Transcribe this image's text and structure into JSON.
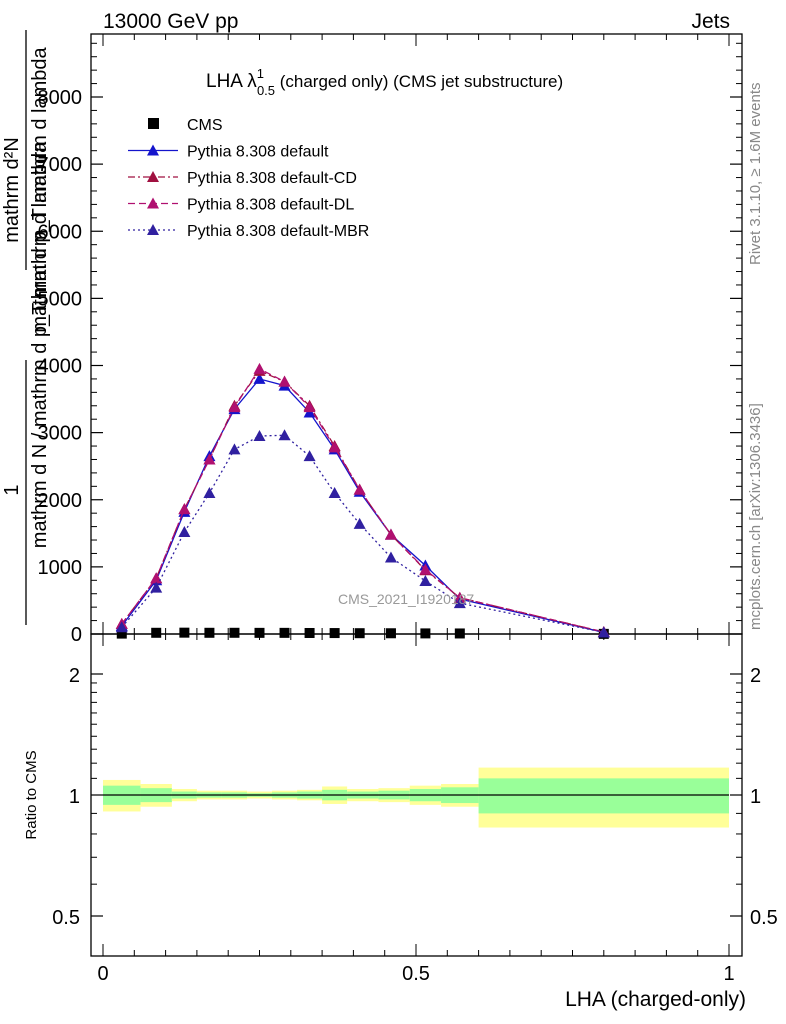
{
  "header": {
    "left": "13000 GeV pp",
    "right": "Jets"
  },
  "title": {
    "main": "LHA λ",
    "sup": "1",
    "sub": "0.5",
    "rest": " (charged only) (CMS jet substructure)"
  },
  "side_labels": {
    "rivet": "Rivet 3.1.10, ≥ 1.6M events",
    "mcplots": "mcplots.cern.ch [arXiv:1306.3436]"
  },
  "watermark": "CMS_2021_I1920187",
  "ylabel_main": {
    "numerator_one": "1",
    "denominator_one": "mathrm d N",
    "numerator_two": "mathrm d²N",
    "denominator_two": "mathrm d p_T mathrm d lambda",
    "combined_denominator": "/ mathrm d p_T mathrm d lambda"
  },
  "ylabel_main_text": "mathrm d N / mathrm d p_T mathrm d lambda",
  "ylabel_ratio": "Ratio to CMS",
  "xlabel": "LHA (charged-only)",
  "colors": {
    "cms": "#000000",
    "default": "#1414cc",
    "cd": "#a01040",
    "dl": "#b01070",
    "mbr": "#3020a0",
    "band_inner": "#99ff99",
    "band_outer": "#ffff99"
  },
  "chart_data": {
    "type": "line",
    "xlim": [
      0,
      1
    ],
    "ylim": [
      0,
      8000
    ],
    "y_ticks": [
      0,
      1000,
      2000,
      3000,
      4000,
      5000,
      6000,
      7000,
      8000
    ],
    "y_tick_labels": [
      "0",
      "1000",
      "2000",
      "3000",
      "4000",
      "5000",
      "6000",
      "7000",
      "8000"
    ],
    "x_ticks": [
      0,
      0.5,
      1
    ],
    "x_tick_labels": [
      "0",
      "0.5",
      "1"
    ],
    "ratio_ylim": [
      0.4,
      2.3
    ],
    "ratio_ticks": [
      0.5,
      1,
      2
    ],
    "ratio_tick_labels": [
      "0.5",
      "1",
      "2"
    ],
    "x": [
      0.03,
      0.085,
      0.13,
      0.17,
      0.21,
      0.25,
      0.29,
      0.33,
      0.37,
      0.41,
      0.46,
      0.515,
      0.57,
      0.8
    ],
    "series": [
      {
        "name": "CMS",
        "marker": "square",
        "values": [
          6,
          18,
          20,
          18,
          18,
          17,
          17,
          15,
          14,
          12,
          11,
          9,
          8,
          2
        ]
      },
      {
        "name": "Pythia 8.308 default",
        "style": "solid",
        "values": [
          120,
          800,
          1820,
          2650,
          3350,
          3800,
          3700,
          3300,
          2750,
          2120,
          1480,
          1020,
          520,
          25
        ]
      },
      {
        "name": "Pythia 8.308 default-CD",
        "style": "dashdot",
        "values": [
          150,
          830,
          1860,
          2600,
          3400,
          3920,
          3760,
          3400,
          2800,
          2150,
          1480,
          950,
          540,
          30
        ]
      },
      {
        "name": "Pythia 8.308 default-DL",
        "style": "dashed",
        "values": [
          150,
          830,
          1860,
          2600,
          3380,
          3950,
          3760,
          3380,
          2780,
          2150,
          1480,
          960,
          540,
          30
        ]
      },
      {
        "name": "Pythia 8.308 default-MBR",
        "style": "dotted",
        "values": [
          100,
          690,
          1520,
          2100,
          2750,
          2950,
          2960,
          2650,
          2100,
          1640,
          1140,
          790,
          460,
          25
        ]
      }
    ],
    "ratio_bands": [
      {
        "x0": 0.0,
        "x1": 0.06,
        "inner": [
          0.945,
          1.055
        ],
        "outer": [
          0.91,
          1.09
        ]
      },
      {
        "x0": 0.06,
        "x1": 0.11,
        "inner": [
          0.96,
          1.04
        ],
        "outer": [
          0.935,
          1.065
        ]
      },
      {
        "x0": 0.11,
        "x1": 0.15,
        "inner": [
          0.98,
          1.02
        ],
        "outer": [
          0.965,
          1.035
        ]
      },
      {
        "x0": 0.15,
        "x1": 0.19,
        "inner": [
          0.985,
          1.015
        ],
        "outer": [
          0.975,
          1.025
        ]
      },
      {
        "x0": 0.19,
        "x1": 0.23,
        "inner": [
          0.985,
          1.015
        ],
        "outer": [
          0.975,
          1.025
        ]
      },
      {
        "x0": 0.23,
        "x1": 0.27,
        "inner": [
          0.99,
          1.01
        ],
        "outer": [
          0.98,
          1.02
        ]
      },
      {
        "x0": 0.27,
        "x1": 0.31,
        "inner": [
          0.985,
          1.015
        ],
        "outer": [
          0.975,
          1.025
        ]
      },
      {
        "x0": 0.31,
        "x1": 0.35,
        "inner": [
          0.98,
          1.02
        ],
        "outer": [
          0.97,
          1.03
        ]
      },
      {
        "x0": 0.35,
        "x1": 0.39,
        "inner": [
          0.97,
          1.03
        ],
        "outer": [
          0.95,
          1.05
        ]
      },
      {
        "x0": 0.39,
        "x1": 0.44,
        "inner": [
          0.98,
          1.02
        ],
        "outer": [
          0.965,
          1.035
        ]
      },
      {
        "x0": 0.44,
        "x1": 0.49,
        "inner": [
          0.975,
          1.025
        ],
        "outer": [
          0.96,
          1.04
        ]
      },
      {
        "x0": 0.49,
        "x1": 0.54,
        "inner": [
          0.965,
          1.035
        ],
        "outer": [
          0.945,
          1.055
        ]
      },
      {
        "x0": 0.54,
        "x1": 0.6,
        "inner": [
          0.955,
          1.045
        ],
        "outer": [
          0.935,
          1.065
        ]
      },
      {
        "x0": 0.6,
        "x1": 1.0,
        "inner": [
          0.9,
          1.1
        ],
        "outer": [
          0.83,
          1.17
        ]
      }
    ]
  }
}
